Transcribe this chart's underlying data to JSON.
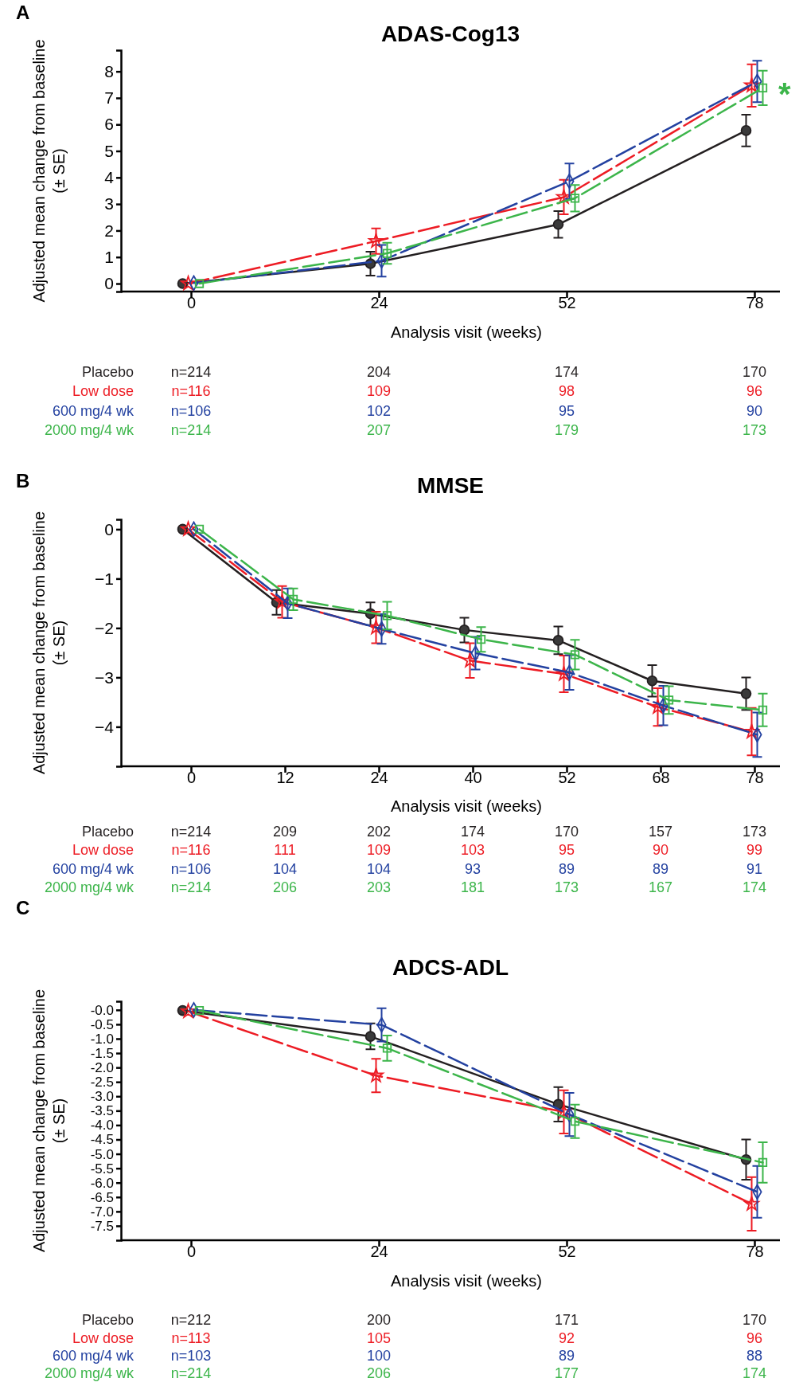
{
  "chart_data": [
    {
      "type": "line",
      "subtitle": "A",
      "title": "ADAS-Cog13",
      "xlabel": "Analysis visit (weeks)",
      "ylabel": "Adjusted mean change from baseline (± SE)",
      "categories": [
        "0",
        "24",
        "52",
        "78"
      ],
      "ylim": [
        -0.3,
        8.8
      ],
      "yticks": [
        0,
        1,
        2,
        3,
        4,
        5,
        6,
        7,
        8
      ],
      "grid": false,
      "series": [
        {
          "name": "Placebo",
          "color": "#231f20",
          "marker": "circle",
          "line_style": "solid",
          "values": [
            0,
            0.75,
            2.23,
            5.77
          ],
          "errors": [
            null,
            0.45,
            0.5,
            0.6
          ]
        },
        {
          "name": "Low dose",
          "color": "#ed1c24",
          "marker": "star",
          "line_style": "dashed",
          "values": [
            0,
            1.6,
            3.26,
            7.47
          ],
          "errors": [
            null,
            0.48,
            0.65,
            0.8
          ]
        },
        {
          "name": "600 mg/4 wk",
          "color": "#2341a0",
          "marker": "diamond",
          "line_style": "dashed",
          "values": [
            0.02,
            0.86,
            3.86,
            7.62
          ],
          "errors": [
            null,
            0.6,
            0.67,
            0.78
          ]
        },
        {
          "name": "2000 mg/4 wk",
          "color": "#3cb54a",
          "marker": "square",
          "line_style": "dashed",
          "values": [
            0,
            1.14,
            3.22,
            7.38
          ],
          "errors": [
            null,
            0.4,
            0.5,
            0.65
          ]
        }
      ],
      "annotations": [
        {
          "text": "*",
          "x": "78",
          "y": 7.38
        },
        "n=214",
        "204",
        "174",
        "170",
        "n=116",
        "109",
        "98",
        "96",
        "n=106",
        "102",
        "95",
        "90",
        "n=214",
        "207",
        "179",
        "173"
      ]
    },
    {
      "type": "line",
      "subtitle": "B",
      "title": "MMSE",
      "xlabel": "Analysis visit (weeks)",
      "ylabel": "Adjusted mean change from baseline (± SE)",
      "categories": [
        "0",
        "12",
        "24",
        "40",
        "52",
        "68",
        "78"
      ],
      "ylim": [
        -4.8,
        0.2
      ],
      "yticks": [
        {
          "value": -4,
          "label": "−4"
        },
        {
          "value": -3,
          "label": "−3"
        },
        {
          "value": -2,
          "label": "−2"
        },
        {
          "value": -1,
          "label": "−1"
        },
        0
      ],
      "grid": false,
      "series": [
        {
          "name": "Placebo",
          "color": "#231f20",
          "marker": "circle",
          "line_style": "solid",
          "values": [
            0,
            -1.48,
            -1.71,
            -2.04,
            -2.25,
            -3.07,
            -3.33
          ],
          "errors": [
            null,
            0.25,
            0.23,
            0.25,
            0.28,
            0.32,
            0.33
          ]
        },
        {
          "name": "Low dose",
          "color": "#ed1c24",
          "marker": "star",
          "line_style": "dashed",
          "values": [
            0,
            -1.47,
            -1.99,
            -2.66,
            -2.93,
            -3.6,
            -4.1
          ],
          "errors": [
            null,
            0.32,
            0.32,
            0.35,
            0.37,
            0.38,
            0.48
          ]
        },
        {
          "name": "600 mg/4 wk",
          "color": "#2341a0",
          "marker": "diamond",
          "line_style": "dashed",
          "values": [
            0,
            -1.5,
            -2.02,
            -2.51,
            -2.9,
            -3.57,
            -4.16
          ],
          "errors": [
            null,
            0.3,
            0.3,
            0.33,
            0.35,
            0.4,
            0.45
          ]
        },
        {
          "name": "2000 mg/4 wk",
          "color": "#3cb54a",
          "marker": "square",
          "line_style": "dashed",
          "values": [
            0,
            -1.42,
            -1.75,
            -2.23,
            -2.54,
            -3.46,
            -3.66
          ],
          "errors": [
            null,
            0.22,
            0.28,
            0.25,
            0.3,
            0.28,
            0.33
          ]
        }
      ],
      "annotations": [
        "n=214",
        "209",
        "202",
        "174",
        "170",
        "157",
        "173",
        "n=116",
        "111",
        "109",
        "103",
        "95",
        "90",
        "99",
        "n=106",
        "104",
        "104",
        "93",
        "89",
        "89",
        "91",
        "n=214",
        "206",
        "203",
        "181",
        "173",
        "167",
        "174"
      ]
    },
    {
      "type": "line",
      "subtitle": "C",
      "title": "ADCS-ADL",
      "xlabel": "Analysis visit (weeks)",
      "ylabel": "Adjusted mean change from baseline (± SE)",
      "categories": [
        "0",
        "24",
        "52",
        "78"
      ],
      "ylim": [
        -8.0,
        0.3
      ],
      "yticks": [
        {
          "value": -7.5,
          "label": "-7.5"
        },
        {
          "value": -7,
          "label": "-7.0"
        },
        {
          "value": -6.5,
          "label": "-6.5"
        },
        {
          "value": -6,
          "label": "-6.0"
        },
        {
          "value": -5.5,
          "label": "-5.5"
        },
        {
          "value": -5,
          "label": "-5.0"
        },
        {
          "value": -4.5,
          "label": "-4.5"
        },
        {
          "value": -4,
          "label": "-4.0"
        },
        {
          "value": -3.5,
          "label": "-3.5"
        },
        {
          "value": -3,
          "label": "-3.0"
        },
        {
          "value": -2.5,
          "label": "-2.5"
        },
        {
          "value": -2,
          "label": "-2.0"
        },
        {
          "value": -1.5,
          "label": "-1.5"
        },
        {
          "value": -1,
          "label": "-1.0"
        },
        {
          "value": -0.5,
          "label": "-0.5"
        },
        {
          "value": 0,
          "label": "-0.0"
        }
      ],
      "grid": false,
      "series": [
        {
          "name": "Placebo",
          "color": "#231f20",
          "marker": "circle",
          "line_style": "solid",
          "values": [
            -0.02,
            -0.92,
            -3.28,
            -5.2
          ],
          "errors": [
            null,
            0.45,
            0.6,
            0.7
          ]
        },
        {
          "name": "Low dose",
          "color": "#ed1c24",
          "marker": "star",
          "line_style": "dashed",
          "values": [
            -0.05,
            -2.28,
            -3.54,
            -6.74
          ],
          "errors": [
            null,
            0.58,
            0.75,
            0.93
          ]
        },
        {
          "name": "600 mg/4 wk",
          "color": "#2341a0",
          "marker": "diamond",
          "line_style": "dashed",
          "values": [
            0,
            -0.52,
            -3.63,
            -6.32
          ],
          "errors": [
            null,
            0.58,
            0.75,
            0.9
          ]
        },
        {
          "name": "2000 mg/4 wk",
          "color": "#3cb54a",
          "marker": "square",
          "line_style": "dashed",
          "values": [
            -0.02,
            -1.33,
            -3.87,
            -5.3
          ],
          "errors": [
            null,
            0.44,
            0.58,
            0.7
          ]
        }
      ],
      "annotations": [
        "n=212",
        "200",
        "171",
        "170",
        "n=113",
        "105",
        "92",
        "96",
        "n=103",
        "100",
        "89",
        "88",
        "n=214",
        "206",
        "177",
        "174"
      ]
    }
  ]
}
